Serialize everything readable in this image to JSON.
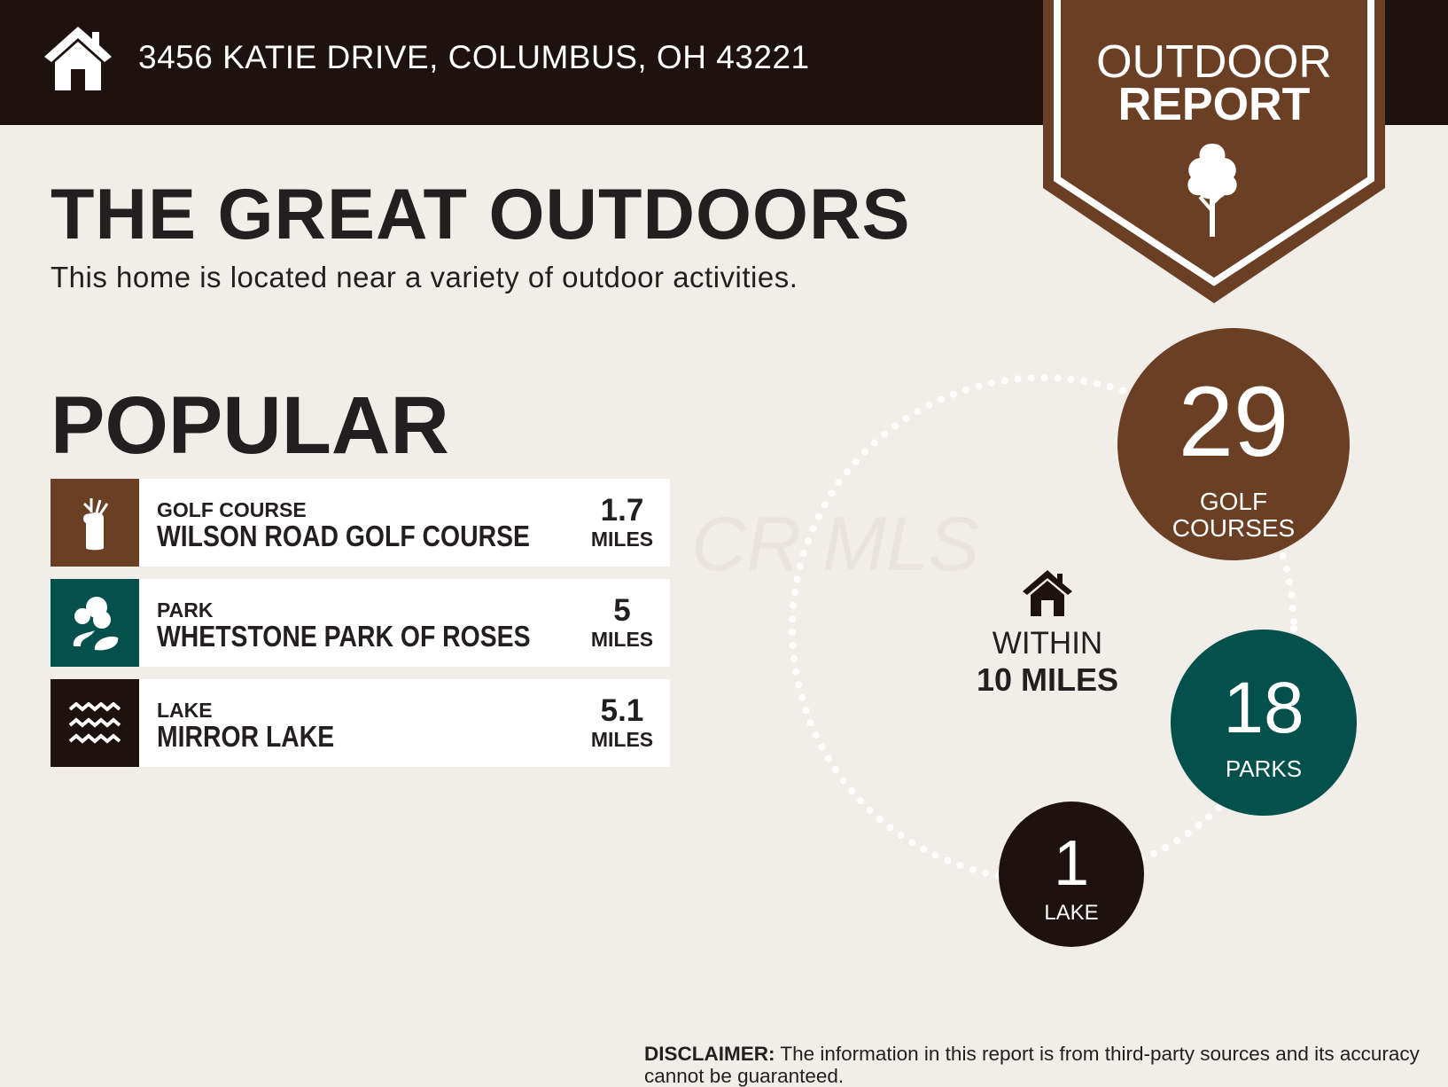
{
  "header": {
    "address": "3456 KATIE DRIVE, COLUMBUS, OH 43221",
    "icon": "house-icon"
  },
  "badge": {
    "line1": "OUTDOOR",
    "line2": "REPORT",
    "icon": "tree-icon",
    "color": "#6b3f24"
  },
  "title": "THE GREAT OUTDOORS",
  "subtitle": "This home is located near a variety of outdoor activities.",
  "popular": {
    "heading": "POPULAR",
    "items": [
      {
        "category": "GOLF COURSE",
        "name": "WILSON ROAD GOLF COURSE",
        "distance": "1.7",
        "unit": "MILES",
        "icon": "golf-bag-icon",
        "color": "#6b3f24"
      },
      {
        "category": "PARK",
        "name": "WHETSTONE PARK OF ROSES",
        "distance": "5",
        "unit": "MILES",
        "icon": "park-trees-icon",
        "color": "#03504d"
      },
      {
        "category": "LAKE",
        "name": "MIRROR LAKE",
        "distance": "5.1",
        "unit": "MILES",
        "icon": "waves-icon",
        "color": "#1e1210"
      }
    ]
  },
  "watermark": "CR MLS",
  "summary": {
    "within_line1": "WITHIN",
    "within_line2": "10 MILES",
    "golf": {
      "count": "29",
      "label1": "GOLF",
      "label2": "COURSES",
      "color": "#6b3f24"
    },
    "parks": {
      "count": "18",
      "label": "PARKS",
      "color": "#03504d"
    },
    "lakes": {
      "count": "1",
      "label": "LAKE",
      "color": "#1e1210"
    }
  },
  "disclaimer": {
    "label": "DISCLAIMER:",
    "text": " The information in this report is from third-party sources and its accuracy cannot be guaranteed."
  }
}
